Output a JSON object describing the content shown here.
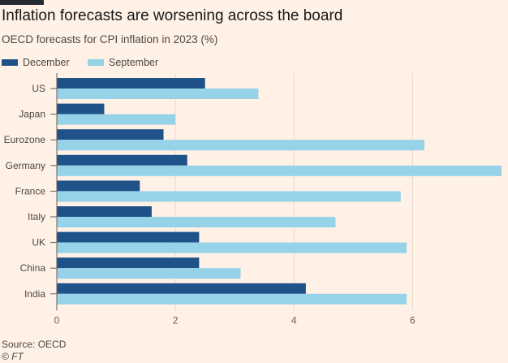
{
  "title": "Inflation forecasts are worsening across the board",
  "subtitle": "OECD forecasts for CPI inflation in 2023 (%)",
  "source": "Source: OECD",
  "credit": "© FT",
  "colors": {
    "background": "#fff1e5",
    "december": "#1f5288",
    "september": "#96d3e8",
    "gridline": "#e6d9ce",
    "axis_text": "#66605c"
  },
  "chart_data": {
    "type": "bar",
    "orientation": "horizontal",
    "categories": [
      "US",
      "Japan",
      "Eurozone",
      "Germany",
      "France",
      "Italy",
      "UK",
      "China",
      "India"
    ],
    "series": [
      {
        "name": "December",
        "values": [
          2.5,
          0.8,
          1.8,
          2.2,
          1.4,
          1.6,
          2.4,
          2.4,
          4.2
        ]
      },
      {
        "name": "September",
        "values": [
          3.4,
          2.0,
          6.2,
          7.5,
          5.8,
          4.7,
          5.9,
          3.1,
          5.9
        ]
      }
    ],
    "xticks": [
      0,
      2,
      4,
      6
    ],
    "xlim": [
      0,
      7.5
    ],
    "grid": true,
    "legend_position": "top-left",
    "xlabel": "",
    "ylabel": ""
  }
}
